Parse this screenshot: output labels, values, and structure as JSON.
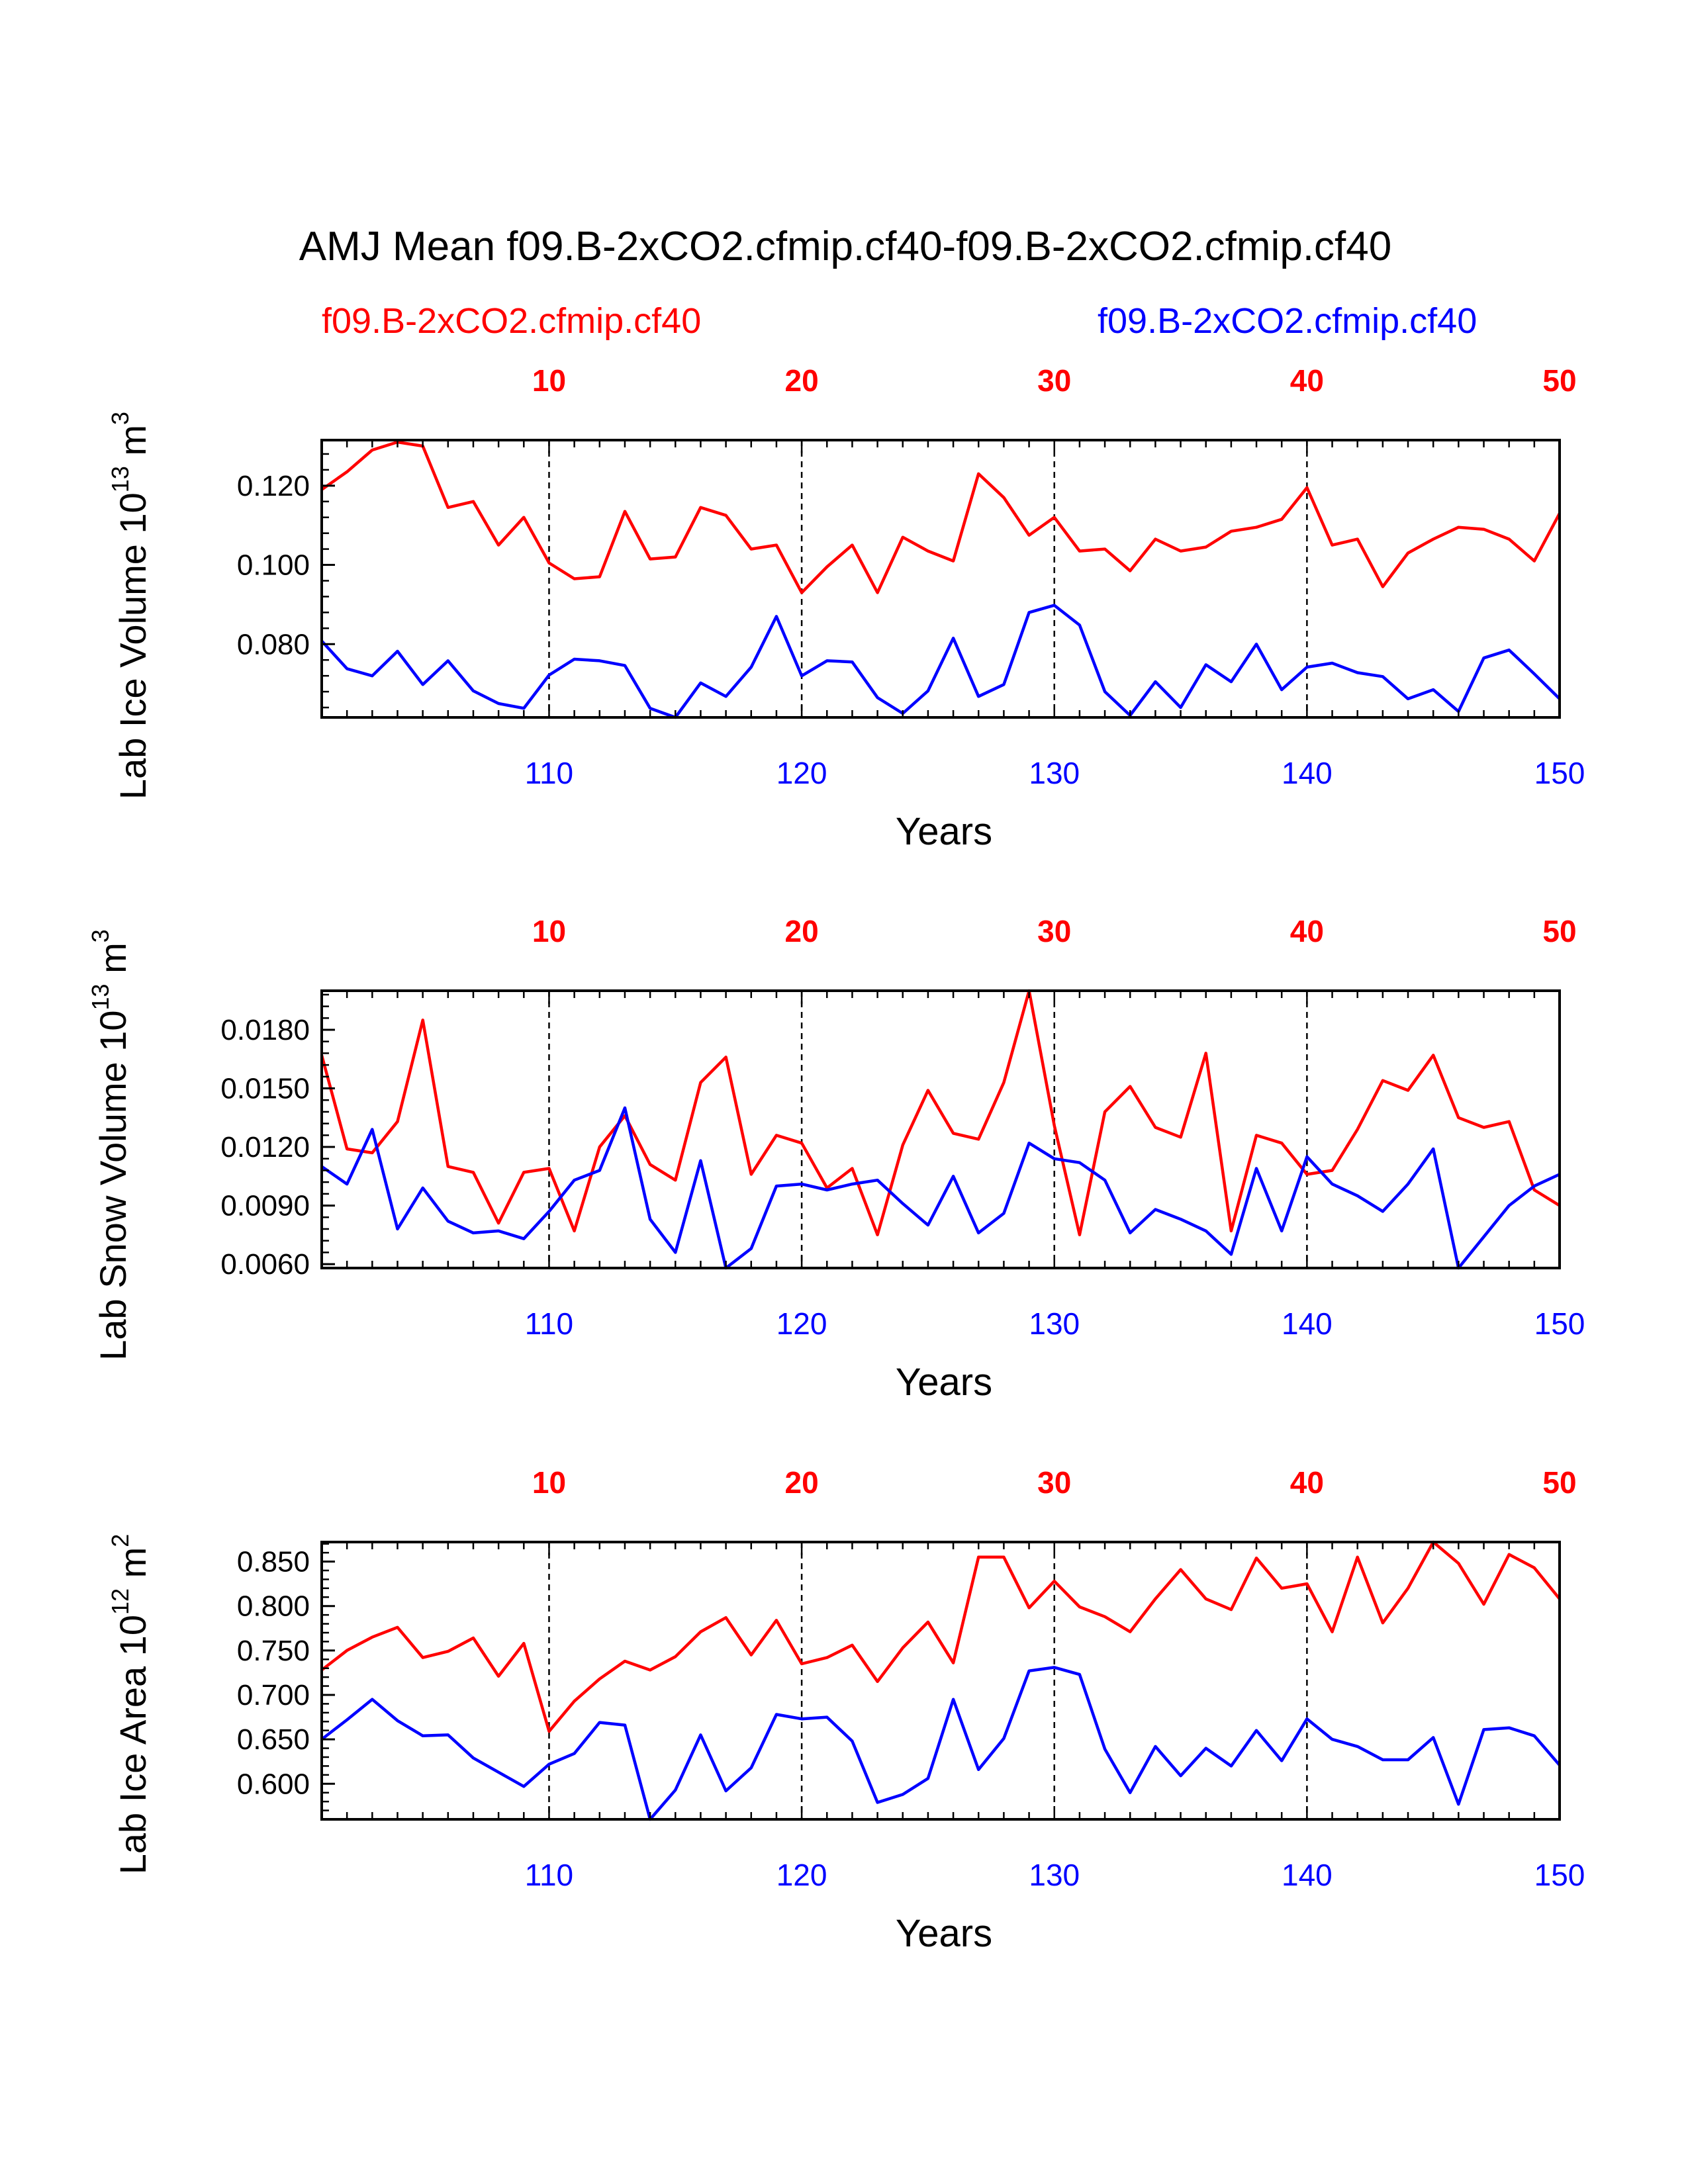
{
  "title": "AMJ Mean f09.B-2xCO2.cfmip.cf40-f09.B-2xCO2.cfmip.cf40",
  "legend": {
    "left": {
      "label": "f09.B-2xCO2.cfmip.cf40",
      "color": "#ff0000"
    },
    "right": {
      "label": "f09.B-2xCO2.cfmip.cf40",
      "color": "#0000ff"
    }
  },
  "colors": {
    "red": "#ff0000",
    "blue": "#0000ff",
    "axis": "#000000"
  },
  "chart_data": [
    {
      "type": "line",
      "ylabel_prefix": "Lab Ice Volume 10",
      "ylabel_exp": "13",
      "ylabel_unit": " m",
      "ylabel_unit_exp": "3",
      "xlabel": "Years",
      "ylim": [
        0.0615,
        0.1315
      ],
      "yticks": [
        0.08,
        0.1,
        0.12
      ],
      "ytick_labels": [
        "0.080",
        "0.100",
        "0.120"
      ],
      "top_xlim": [
        1,
        50
      ],
      "top_xticks": [
        10,
        20,
        30,
        40,
        50
      ],
      "top_xtick_labels": [
        "10",
        "20",
        "30",
        "40",
        "50"
      ],
      "bottom_xlim": [
        101,
        150
      ],
      "bottom_xticks": [
        110,
        120,
        130,
        140,
        150
      ],
      "bottom_xtick_labels": [
        "110",
        "120",
        "130",
        "140",
        "150"
      ],
      "series": [
        {
          "name": "f09.B-2xCO2.cfmip.cf40",
          "color": "#ff0000",
          "axis": "top",
          "values": [
            0.119,
            0.1235,
            0.129,
            0.131,
            0.13,
            0.1145,
            0.116,
            0.105,
            0.112,
            0.1005,
            0.0965,
            0.097,
            0.1135,
            0.1015,
            0.102,
            0.1145,
            0.1125,
            0.104,
            0.105,
            0.093,
            0.0995,
            0.105,
            0.093,
            0.107,
            0.1035,
            0.101,
            0.123,
            0.117,
            0.1075,
            0.112,
            0.1035,
            0.104,
            0.0985,
            0.1065,
            0.1035,
            0.1045,
            0.1085,
            0.1095,
            0.1115,
            0.1195,
            0.105,
            0.1065,
            0.0945,
            0.103,
            0.1065,
            0.1095,
            0.109,
            0.1065,
            0.101,
            0.113
          ]
        },
        {
          "name": "f09.B-2xCO2.cfmip.cf40",
          "color": "#0000ff",
          "axis": "bottom",
          "values": [
            0.0808,
            0.0738,
            0.072,
            0.0782,
            0.0698,
            0.0758,
            0.0682,
            0.065,
            0.0638,
            0.0722,
            0.0762,
            0.0758,
            0.0746,
            0.0638,
            0.0615,
            0.0702,
            0.0668,
            0.0742,
            0.087,
            0.072,
            0.0758,
            0.0755,
            0.0665,
            0.0625,
            0.0682,
            0.0815,
            0.0668,
            0.0698,
            0.088,
            0.0898,
            0.0848,
            0.068,
            0.062,
            0.0705,
            0.064,
            0.0748,
            0.0705,
            0.08,
            0.0685,
            0.0742,
            0.0752,
            0.0728,
            0.0718,
            0.0662,
            0.0685,
            0.063,
            0.0765,
            0.0785,
            0.0725,
            0.0662
          ]
        }
      ]
    },
    {
      "type": "line",
      "ylabel_prefix": "Lab Snow Volume 10",
      "ylabel_exp": "13",
      "ylabel_unit": " m",
      "ylabel_unit_exp": "3",
      "xlabel": "Years",
      "ylim": [
        0.0058,
        0.02
      ],
      "yticks": [
        0.006,
        0.009,
        0.012,
        0.015,
        0.018
      ],
      "ytick_labels": [
        "0.0060",
        "0.0090",
        "0.0120",
        "0.0150",
        "0.0180"
      ],
      "top_xlim": [
        1,
        50
      ],
      "top_xticks": [
        10,
        20,
        30,
        40,
        50
      ],
      "top_xtick_labels": [
        "10",
        "20",
        "30",
        "40",
        "50"
      ],
      "bottom_xlim": [
        101,
        150
      ],
      "bottom_xticks": [
        110,
        120,
        130,
        140,
        150
      ],
      "bottom_xtick_labels": [
        "110",
        "120",
        "130",
        "140",
        "150"
      ],
      "series": [
        {
          "name": "f09.B-2xCO2.cfmip.cf40",
          "color": "#ff0000",
          "axis": "top",
          "values": [
            0.0167,
            0.0119,
            0.0117,
            0.0133,
            0.0185,
            0.011,
            0.0107,
            0.0081,
            0.0107,
            0.0109,
            0.0077,
            0.012,
            0.0136,
            0.0111,
            0.0103,
            0.0153,
            0.0166,
            0.0106,
            0.0126,
            0.0122,
            0.0099,
            0.0109,
            0.0075,
            0.0121,
            0.0149,
            0.0127,
            0.0124,
            0.0153,
            0.02,
            0.0131,
            0.0075,
            0.0138,
            0.0151,
            0.013,
            0.0125,
            0.0168,
            0.0077,
            0.0126,
            0.0122,
            0.0106,
            0.0108,
            0.0129,
            0.0154,
            0.0149,
            0.0167,
            0.0135,
            0.013,
            0.0133,
            0.0098,
            0.009
          ]
        },
        {
          "name": "f09.B-2xCO2.cfmip.cf40",
          "color": "#0000ff",
          "axis": "bottom",
          "values": [
            0.011,
            0.0101,
            0.0129,
            0.0078,
            0.0099,
            0.0082,
            0.0076,
            0.0077,
            0.0073,
            0.0087,
            0.0103,
            0.0108,
            0.014,
            0.0083,
            0.0066,
            0.0113,
            0.0058,
            0.0068,
            0.01,
            0.0101,
            0.0098,
            0.0101,
            0.0103,
            0.0091,
            0.008,
            0.0105,
            0.0076,
            0.0086,
            0.0122,
            0.0114,
            0.0112,
            0.0103,
            0.0076,
            0.0088,
            0.0083,
            0.0077,
            0.0065,
            0.0109,
            0.0077,
            0.0115,
            0.0101,
            0.0095,
            0.0087,
            0.0101,
            0.0119,
            0.0058,
            0.0074,
            0.009,
            0.01,
            0.0106
          ]
        }
      ]
    },
    {
      "type": "line",
      "ylabel_prefix": "Lab Ice Area 10",
      "ylabel_exp": "12",
      "ylabel_unit": " m",
      "ylabel_unit_exp": "2",
      "xlabel": "Years",
      "ylim": [
        0.56,
        0.872
      ],
      "yticks": [
        0.6,
        0.65,
        0.7,
        0.75,
        0.8,
        0.85
      ],
      "ytick_labels": [
        "0.600",
        "0.650",
        "0.700",
        "0.750",
        "0.800",
        "0.850"
      ],
      "top_xlim": [
        1,
        50
      ],
      "top_xticks": [
        10,
        20,
        30,
        40,
        50
      ],
      "top_xtick_labels": [
        "10",
        "20",
        "30",
        "40",
        "50"
      ],
      "bottom_xlim": [
        101,
        150
      ],
      "bottom_xticks": [
        110,
        120,
        130,
        140,
        150
      ],
      "bottom_xtick_labels": [
        "110",
        "120",
        "130",
        "140",
        "150"
      ],
      "series": [
        {
          "name": "f09.B-2xCO2.cfmip.cf40",
          "color": "#ff0000",
          "axis": "top",
          "values": [
            0.728,
            0.75,
            0.765,
            0.776,
            0.742,
            0.749,
            0.764,
            0.721,
            0.758,
            0.659,
            0.693,
            0.718,
            0.738,
            0.728,
            0.743,
            0.771,
            0.787,
            0.745,
            0.784,
            0.735,
            0.742,
            0.756,
            0.715,
            0.753,
            0.782,
            0.736,
            0.855,
            0.855,
            0.798,
            0.828,
            0.799,
            0.788,
            0.771,
            0.808,
            0.841,
            0.808,
            0.796,
            0.854,
            0.82,
            0.825,
            0.771,
            0.855,
            0.781,
            0.82,
            0.872,
            0.848,
            0.802,
            0.858,
            0.843,
            0.808
          ]
        },
        {
          "name": "f09.B-2xCO2.cfmip.cf40",
          "color": "#0000ff",
          "axis": "bottom",
          "values": [
            0.65,
            0.672,
            0.695,
            0.671,
            0.654,
            0.655,
            0.629,
            0.613,
            0.597,
            0.622,
            0.634,
            0.669,
            0.666,
            0.56,
            0.593,
            0.655,
            0.592,
            0.618,
            0.678,
            0.673,
            0.675,
            0.648,
            0.579,
            0.588,
            0.606,
            0.695,
            0.616,
            0.651,
            0.727,
            0.731,
            0.723,
            0.639,
            0.59,
            0.642,
            0.609,
            0.64,
            0.62,
            0.66,
            0.626,
            0.673,
            0.65,
            0.642,
            0.627,
            0.627,
            0.652,
            0.577,
            0.661,
            0.663,
            0.654,
            0.621
          ]
        }
      ]
    }
  ]
}
